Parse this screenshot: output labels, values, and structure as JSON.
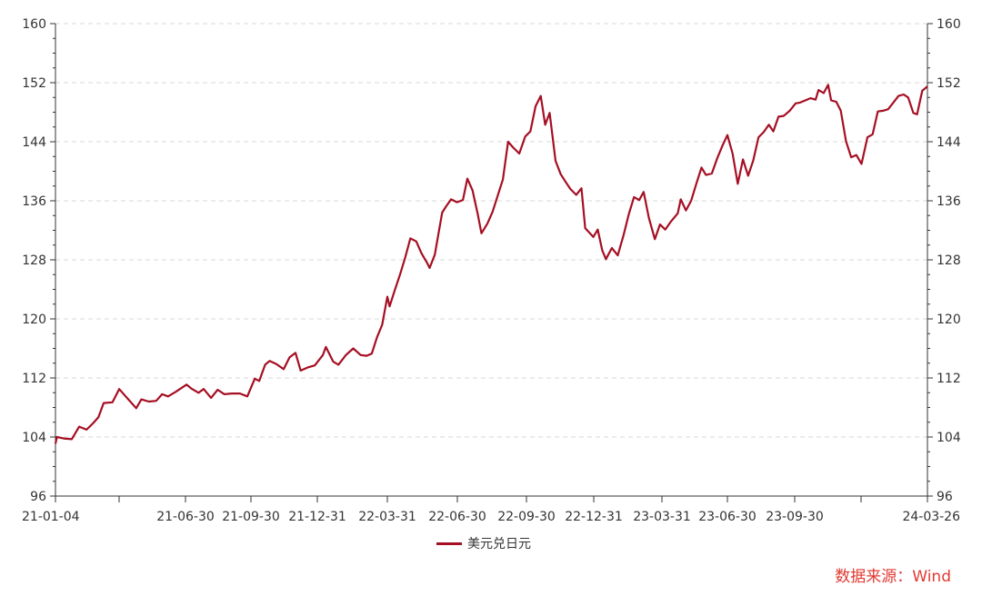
{
  "chart_data": {
    "type": "line",
    "x_tick_labels": [
      "21-01-04",
      "21-06-30",
      "21-09-30",
      "21-12-31",
      "22-03-31",
      "22-06-30",
      "22-09-30",
      "22-12-31",
      "23-03-31",
      "23-06-30",
      "23-09-30",
      "24-03-26"
    ],
    "y_ticks": [
      96,
      104,
      112,
      120,
      128,
      136,
      144,
      152,
      160
    ],
    "ylim": [
      96,
      160
    ],
    "xlim": [
      "2021-01-04",
      "2024-03-26"
    ],
    "grid": true,
    "legend_position": "bottom-center",
    "colors": {
      "line": "#a50f23",
      "grid": "#d9d9d9",
      "axis": "#333333",
      "source": "#e03a33"
    },
    "series": [
      {
        "name": "美元兑日元",
        "points": [
          [
            "2021-01-04",
            103.1
          ],
          [
            "2021-01-06",
            104.0
          ],
          [
            "2021-01-15",
            103.8
          ],
          [
            "2021-01-26",
            103.7
          ],
          [
            "2021-02-05",
            105.4
          ],
          [
            "2021-02-15",
            105.0
          ],
          [
            "2021-02-24",
            105.9
          ],
          [
            "2021-03-03",
            106.7
          ],
          [
            "2021-03-10",
            108.6
          ],
          [
            "2021-03-22",
            108.7
          ],
          [
            "2021-03-31",
            110.5
          ],
          [
            "2021-04-07",
            109.7
          ],
          [
            "2021-04-15",
            108.8
          ],
          [
            "2021-04-23",
            107.9
          ],
          [
            "2021-04-30",
            109.1
          ],
          [
            "2021-05-10",
            108.8
          ],
          [
            "2021-05-20",
            108.9
          ],
          [
            "2021-05-28",
            109.8
          ],
          [
            "2021-06-05",
            109.5
          ],
          [
            "2021-06-15",
            110.1
          ],
          [
            "2021-06-30",
            111.1
          ],
          [
            "2021-07-06",
            110.6
          ],
          [
            "2021-07-16",
            110.0
          ],
          [
            "2021-07-23",
            110.5
          ],
          [
            "2021-08-02",
            109.3
          ],
          [
            "2021-08-11",
            110.4
          ],
          [
            "2021-08-20",
            109.8
          ],
          [
            "2021-08-31",
            109.9
          ],
          [
            "2021-09-10",
            109.9
          ],
          [
            "2021-09-20",
            109.5
          ],
          [
            "2021-09-30",
            111.9
          ],
          [
            "2021-10-06",
            111.6
          ],
          [
            "2021-10-14",
            113.8
          ],
          [
            "2021-10-20",
            114.3
          ],
          [
            "2021-10-29",
            113.9
          ],
          [
            "2021-11-08",
            113.2
          ],
          [
            "2021-11-16",
            114.8
          ],
          [
            "2021-11-24",
            115.4
          ],
          [
            "2021-12-01",
            113.0
          ],
          [
            "2021-12-10",
            113.4
          ],
          [
            "2021-12-20",
            113.7
          ],
          [
            "2021-12-31",
            115.1
          ],
          [
            "2022-01-04",
            116.2
          ],
          [
            "2022-01-14",
            114.2
          ],
          [
            "2022-01-21",
            113.8
          ],
          [
            "2022-01-31",
            115.1
          ],
          [
            "2022-02-10",
            116.0
          ],
          [
            "2022-02-20",
            115.1
          ],
          [
            "2022-02-28",
            115.0
          ],
          [
            "2022-03-07",
            115.3
          ],
          [
            "2022-03-14",
            117.5
          ],
          [
            "2022-03-21",
            119.2
          ],
          [
            "2022-03-28",
            123.0
          ],
          [
            "2022-03-31",
            121.7
          ],
          [
            "2022-04-07",
            123.9
          ],
          [
            "2022-04-14",
            126.0
          ],
          [
            "2022-04-21",
            128.3
          ],
          [
            "2022-04-28",
            130.9
          ],
          [
            "2022-05-06",
            130.5
          ],
          [
            "2022-05-13",
            128.9
          ],
          [
            "2022-05-20",
            127.7
          ],
          [
            "2022-05-24",
            126.9
          ],
          [
            "2022-05-31",
            128.7
          ],
          [
            "2022-06-10",
            134.4
          ],
          [
            "2022-06-15",
            135.2
          ],
          [
            "2022-06-22",
            136.2
          ],
          [
            "2022-06-30",
            135.8
          ],
          [
            "2022-07-08",
            136.1
          ],
          [
            "2022-07-14",
            139.0
          ],
          [
            "2022-07-21",
            137.4
          ],
          [
            "2022-07-28",
            134.2
          ],
          [
            "2022-08-02",
            131.6
          ],
          [
            "2022-08-10",
            132.9
          ],
          [
            "2022-08-17",
            134.5
          ],
          [
            "2022-08-24",
            136.7
          ],
          [
            "2022-08-31",
            138.9
          ],
          [
            "2022-09-07",
            144.0
          ],
          [
            "2022-09-14",
            143.2
          ],
          [
            "2022-09-22",
            142.4
          ],
          [
            "2022-09-30",
            144.7
          ],
          [
            "2022-10-07",
            145.4
          ],
          [
            "2022-10-14",
            148.8
          ],
          [
            "2022-10-21",
            150.2
          ],
          [
            "2022-10-27",
            146.3
          ],
          [
            "2022-11-02",
            147.9
          ],
          [
            "2022-11-10",
            141.4
          ],
          [
            "2022-11-17",
            139.6
          ],
          [
            "2022-11-24",
            138.5
          ],
          [
            "2022-11-30",
            137.6
          ],
          [
            "2022-12-08",
            136.8
          ],
          [
            "2022-12-15",
            137.7
          ],
          [
            "2022-12-20",
            132.3
          ],
          [
            "2022-12-31",
            131.1
          ],
          [
            "2023-01-06",
            132.1
          ],
          [
            "2023-01-12",
            129.3
          ],
          [
            "2023-01-17",
            128.1
          ],
          [
            "2023-01-25",
            129.6
          ],
          [
            "2023-02-02",
            128.6
          ],
          [
            "2023-02-10",
            131.4
          ],
          [
            "2023-02-17",
            134.2
          ],
          [
            "2023-02-24",
            136.5
          ],
          [
            "2023-03-03",
            136.1
          ],
          [
            "2023-03-09",
            137.2
          ],
          [
            "2023-03-16",
            133.7
          ],
          [
            "2023-03-24",
            130.8
          ],
          [
            "2023-03-31",
            132.8
          ],
          [
            "2023-04-07",
            132.1
          ],
          [
            "2023-04-14",
            133.1
          ],
          [
            "2023-04-24",
            134.3
          ],
          [
            "2023-04-28",
            136.2
          ],
          [
            "2023-05-05",
            134.7
          ],
          [
            "2023-05-12",
            136.0
          ],
          [
            "2023-05-19",
            138.3
          ],
          [
            "2023-05-26",
            140.5
          ],
          [
            "2023-06-01",
            139.5
          ],
          [
            "2023-06-09",
            139.7
          ],
          [
            "2023-06-16",
            141.7
          ],
          [
            "2023-06-23",
            143.4
          ],
          [
            "2023-06-30",
            144.9
          ],
          [
            "2023-07-07",
            142.4
          ],
          [
            "2023-07-14",
            138.3
          ],
          [
            "2023-07-21",
            141.6
          ],
          [
            "2023-07-28",
            139.4
          ],
          [
            "2023-08-04",
            141.5
          ],
          [
            "2023-08-11",
            144.6
          ],
          [
            "2023-08-18",
            145.3
          ],
          [
            "2023-08-25",
            146.3
          ],
          [
            "2023-08-31",
            145.4
          ],
          [
            "2023-09-07",
            147.4
          ],
          [
            "2023-09-14",
            147.5
          ],
          [
            "2023-09-22",
            148.2
          ],
          [
            "2023-09-30",
            149.2
          ],
          [
            "2023-10-06",
            149.3
          ],
          [
            "2023-10-13",
            149.6
          ],
          [
            "2023-10-20",
            149.9
          ],
          [
            "2023-10-27",
            149.7
          ],
          [
            "2023-10-31",
            151.0
          ],
          [
            "2023-11-07",
            150.6
          ],
          [
            "2023-11-13",
            151.7
          ],
          [
            "2023-11-17",
            149.6
          ],
          [
            "2023-11-24",
            149.4
          ],
          [
            "2023-11-30",
            148.2
          ],
          [
            "2023-12-07",
            144.1
          ],
          [
            "2023-12-14",
            141.9
          ],
          [
            "2023-12-21",
            142.2
          ],
          [
            "2023-12-28",
            141.0
          ],
          [
            "2024-01-05",
            144.6
          ],
          [
            "2024-01-12",
            145.0
          ],
          [
            "2024-01-19",
            148.1
          ],
          [
            "2024-01-26",
            148.2
          ],
          [
            "2024-02-02",
            148.4
          ],
          [
            "2024-02-09",
            149.3
          ],
          [
            "2024-02-16",
            150.2
          ],
          [
            "2024-02-23",
            150.4
          ],
          [
            "2024-02-29",
            150.0
          ],
          [
            "2024-03-07",
            147.9
          ],
          [
            "2024-03-12",
            147.7
          ],
          [
            "2024-03-19",
            150.9
          ],
          [
            "2024-03-26",
            151.5
          ]
        ]
      }
    ]
  },
  "legend": {
    "label": "美元兑日元"
  },
  "source": "数据来源：Wind"
}
